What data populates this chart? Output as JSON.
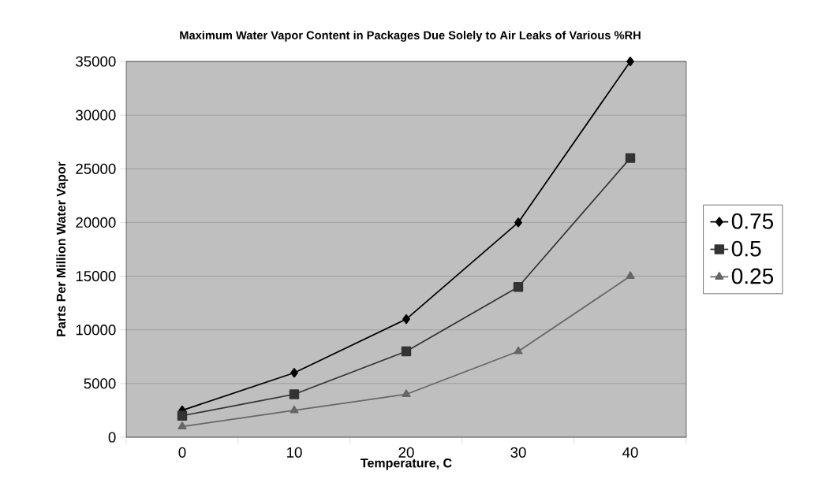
{
  "chart_data": {
    "type": "line",
    "title": "Maximum Water Vapor Content in Packages Due Solely to Air Leaks of Various %RH",
    "xlabel": "Temperature, C",
    "ylabel": "Parts Per Million Water Vapor",
    "categories": [
      "0",
      "10",
      "20",
      "30",
      "40"
    ],
    "series": [
      {
        "name": "0.75",
        "color": "#000000",
        "marker": "diamond",
        "values": [
          2500,
          6000,
          11000,
          20000,
          35000
        ]
      },
      {
        "name": "0.5",
        "color": "#333333",
        "marker": "square",
        "values": [
          2000,
          4000,
          8000,
          14000,
          26000
        ]
      },
      {
        "name": "0.25",
        "color": "#666666",
        "marker": "triangle",
        "values": [
          1000,
          2500,
          4000,
          8000,
          15000
        ]
      }
    ],
    "ylim": [
      0,
      35000
    ],
    "yticks": [
      0,
      5000,
      10000,
      15000,
      20000,
      25000,
      30000,
      35000
    ],
    "grid": "y",
    "legend": "right",
    "line_style": "solid"
  }
}
